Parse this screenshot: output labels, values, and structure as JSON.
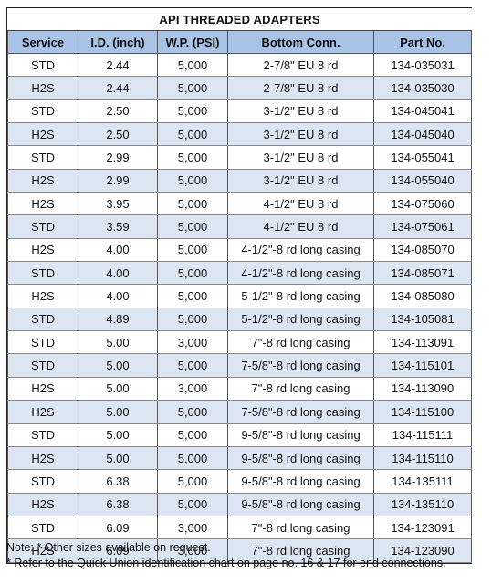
{
  "table": {
    "title": "API THREADED ADAPTERS",
    "headers": [
      "Service",
      "I.D. (inch)",
      "W.P. (PSI)",
      "Bottom Conn.",
      "Part No."
    ],
    "rows": [
      [
        "STD",
        "2.44",
        "5,000",
        "2-7/8\" EU 8 rd",
        "134-035031"
      ],
      [
        "H2S",
        "2.44",
        "5,000",
        "2-7/8\" EU 8 rd",
        "134-035030"
      ],
      [
        "STD",
        "2.50",
        "5,000",
        "3-1/2\" EU 8 rd",
        "134-045041"
      ],
      [
        "H2S",
        "2.50",
        "5,000",
        "3-1/2\" EU 8 rd",
        "134-045040"
      ],
      [
        "STD",
        "2.99",
        "5,000",
        "3-1/2\" EU 8 rd",
        "134-055041"
      ],
      [
        "H2S",
        "2.99",
        "5,000",
        "3-1/2\" EU 8 rd",
        "134-055040"
      ],
      [
        "H2S",
        "3.95",
        "5,000",
        "4-1/2\" EU 8 rd",
        "134-075060"
      ],
      [
        "STD",
        "3.59",
        "5,000",
        "4-1/2\" EU 8 rd",
        "134-075061"
      ],
      [
        "H2S",
        "4.00",
        "5,000",
        "4-1/2\"-8 rd long casing",
        "134-085070"
      ],
      [
        "STD",
        "4.00",
        "5,000",
        "4-1/2\"-8 rd long casing",
        "134-085071"
      ],
      [
        "H2S",
        "4.00",
        "5,000",
        "5-1/2\"-8 rd long casing",
        "134-085080"
      ],
      [
        "STD",
        "4.89",
        "5,000",
        "5-1/2\"-8 rd long casing",
        "134-105081"
      ],
      [
        "STD",
        "5.00",
        "3,000",
        "7\"-8 rd long casing",
        "134-113091"
      ],
      [
        "STD",
        "5.00",
        "5,000",
        "7-5/8\"-8 rd long casing",
        "134-115101"
      ],
      [
        "H2S",
        "5.00",
        "3,000",
        "7\"-8 rd long casing",
        "134-113090"
      ],
      [
        "H2S",
        "5.00",
        "5,000",
        "7-5/8\"-8 rd long casing",
        "134-115100"
      ],
      [
        "STD",
        "5.00",
        "5,000",
        "9-5/8\"-8 rd long casing",
        "134-115111"
      ],
      [
        "H2S",
        "5.00",
        "5,000",
        "9-5/8\"-8 rd long casing",
        "134-115110"
      ],
      [
        "STD",
        "6.38",
        "5,000",
        "9-5/8\"-8 rd long casing",
        "134-135111"
      ],
      [
        "H2S",
        "6.38",
        "5,000",
        "9-5/8\"-8 rd long casing",
        "134-135110"
      ],
      [
        "STD",
        "6.09",
        "3,000",
        "7\"-8 rd long casing",
        "134-123091"
      ],
      [
        "H2S",
        "6.09",
        "3,000",
        "7\"-8 rd long casing",
        "134-123090"
      ]
    ]
  },
  "notes": {
    "line1": "Note: * Other sizes available on request.",
    "line2": "* Refer to the Quick Union identification chart on page no. 16 & 17 for end connections."
  },
  "colors": {
    "header_bg": "#a9c3e6",
    "alt_row_bg": "#dce6f3"
  }
}
